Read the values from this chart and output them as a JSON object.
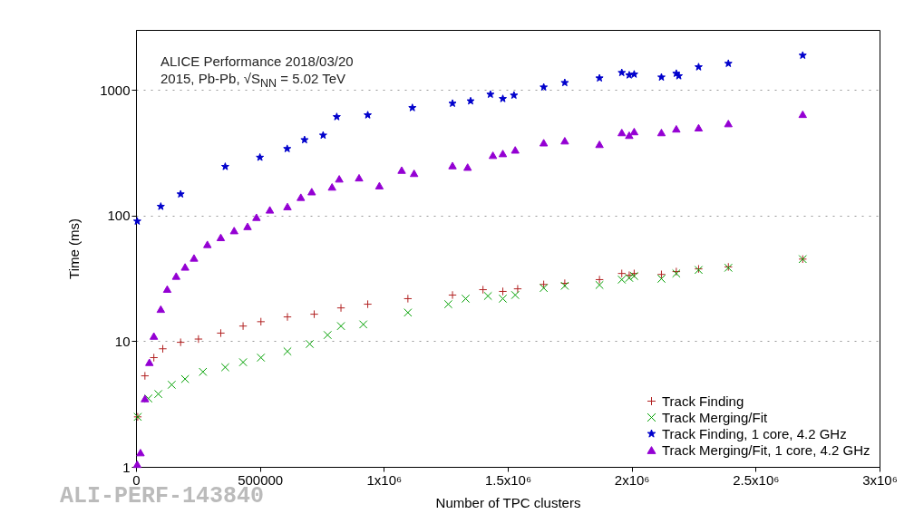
{
  "chart_data": {
    "type": "scatter",
    "xlabel": "Number of TPC clusters",
    "ylabel": "Time (ms)",
    "xlim": [
      0,
      3000000
    ],
    "ylim": [
      1,
      3000
    ],
    "xticks": [
      0,
      500000,
      {
        "value": 1000000,
        "label": "1x10⁶"
      },
      {
        "value": 1500000,
        "label": "1.5x10⁶"
      },
      {
        "value": 2000000,
        "label": "2x10⁶"
      },
      {
        "value": 2500000,
        "label": "2.5x10⁶"
      },
      {
        "value": 3000000,
        "label": "3x10⁶"
      }
    ],
    "yticks": [
      1,
      10,
      100,
      1000
    ],
    "log": "y",
    "grid": "y",
    "legend": "bottom right",
    "annotations": [
      "ALICE Performance 2018/03/20",
      "2015, Pb-Pb, √S$_{NN}$ = 5.02 TeV",
      "ALI-PERF-143840"
    ],
    "series": [
      {
        "name": "Track Finding",
        "color": "#b22222",
        "marker": "cross",
        "x": [
          7000,
          36000,
          72000,
          108000,
          180000,
          252000,
          342000,
          432000,
          504000,
          611000,
          719000,
          827000,
          935000,
          1097000,
          1277000,
          1400000,
          1480000,
          1540000,
          1645000,
          1730000,
          1870000,
          1960000,
          1990000,
          2010000,
          2120000,
          2180000,
          2270000,
          2390000,
          2690000
        ],
        "values": [
          2.5,
          5.3,
          7.4,
          8.7,
          9.8,
          10.4,
          11.6,
          13.2,
          14.3,
          15.6,
          16.4,
          18.4,
          19.7,
          21.8,
          23.3,
          25.7,
          24.9,
          26.1,
          28.3,
          28.9,
          30.9,
          34.6,
          33.5,
          34.6,
          34,
          35.8,
          37.6,
          39,
          45
        ]
      },
      {
        "name": "Track Merging/Fit",
        "color": "#00a000",
        "marker": "x",
        "x": [
          7000,
          50000,
          90000,
          144000,
          198000,
          270000,
          360000,
          432000,
          504000,
          611000,
          701000,
          773000,
          827000,
          917000,
          1097000,
          1260000,
          1330000,
          1420000,
          1480000,
          1530000,
          1645000,
          1730000,
          1870000,
          1960000,
          1990000,
          2010000,
          2120000,
          2180000,
          2270000,
          2390000,
          2690000
        ],
        "values": [
          2.5,
          3.5,
          3.8,
          4.5,
          5,
          5.7,
          6.2,
          6.8,
          7.4,
          8.3,
          9.5,
          11.2,
          13.2,
          13.6,
          16.9,
          19.7,
          21.8,
          22.9,
          21.8,
          23.3,
          26.5,
          27.6,
          28,
          30.9,
          31.9,
          33,
          31.4,
          34.6,
          36.9,
          38.4,
          45
        ]
      },
      {
        "name": "Track Finding, 1 core, 4.2 GHz",
        "color": "#0000cc",
        "marker": "star",
        "x": [
          5000,
          100000,
          180000,
          360000,
          500000,
          610000,
          680000,
          755000,
          810000,
          935000,
          1115000,
          1277000,
          1350000,
          1430000,
          1480000,
          1525000,
          1645000,
          1730000,
          1870000,
          1960000,
          1990000,
          2010000,
          2120000,
          2180000,
          2190000,
          2270000,
          2390000,
          2690000
        ],
        "values": [
          90,
          118,
          148,
          245,
          290,
          340,
          400,
          435,
          610,
          630,
          720,
          780,
          815,
          920,
          850,
          905,
          1050,
          1140,
          1240,
          1370,
          1310,
          1330,
          1260,
          1350,
          1290,
          1520,
          1620,
          1880
        ]
      },
      {
        "name": "Track Merging/Fit, 1 core, 4.2 GHz",
        "color": "#9400d3",
        "marker": "triangle",
        "x": [
          5000,
          18000,
          36000,
          54000,
          72000,
          100000,
          126000,
          162000,
          198000,
          234000,
          288000,
          342000,
          396000,
          450000,
          486000,
          540000,
          611000,
          665000,
          709000,
          791000,
          820000,
          900000,
          982000,
          1072000,
          1122000,
          1277000,
          1338000,
          1440000,
          1480000,
          1530000,
          1645000,
          1730000,
          1870000,
          1960000,
          1990000,
          2010000,
          2120000,
          2180000,
          2270000,
          2390000,
          2690000
        ],
        "values": [
          1.05,
          1.3,
          3.5,
          6.8,
          11,
          18,
          26,
          33,
          39,
          46,
          59,
          67,
          76,
          82,
          97,
          111,
          118,
          140,
          155,
          169,
          196,
          200,
          173,
          230,
          217,
          250,
          243,
          302,
          312,
          333,
          380,
          394,
          369,
          458,
          436,
          466,
          458,
          490,
          500,
          540,
          640
        ]
      }
    ]
  }
}
